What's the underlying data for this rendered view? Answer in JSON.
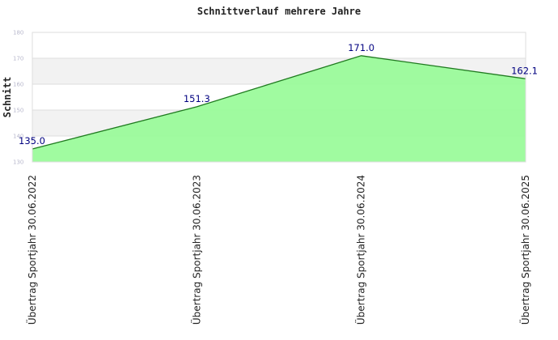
{
  "chart_data": {
    "type": "area",
    "title": "Schnittverlauf mehrere Jahre",
    "xlabel": "",
    "ylabel": "Schnitt",
    "categories": [
      "Übertrag Sportjahr 30.06.2022",
      "Übertrag Sportjahr 30.06.2023",
      "Übertrag Sportjahr 30.06.2024",
      "Übertrag Sportjahr 30.06.2025"
    ],
    "values": [
      135.0,
      151.3,
      171.0,
      162.1
    ],
    "data_labels": [
      "135.0",
      "151.3",
      "171.0",
      "162.1"
    ],
    "ylim": [
      130,
      180
    ],
    "yticks": [
      130,
      140,
      150,
      160,
      170,
      180
    ],
    "ytick_labels": [
      "130",
      "140",
      "150",
      "160",
      "170",
      "180"
    ],
    "grid": true,
    "legend": "none",
    "colors": {
      "fill": "#98fb98",
      "line": "#1f7a1f",
      "band": "#f2f2f2",
      "grid": "#dddddd",
      "label": "#000080"
    }
  }
}
